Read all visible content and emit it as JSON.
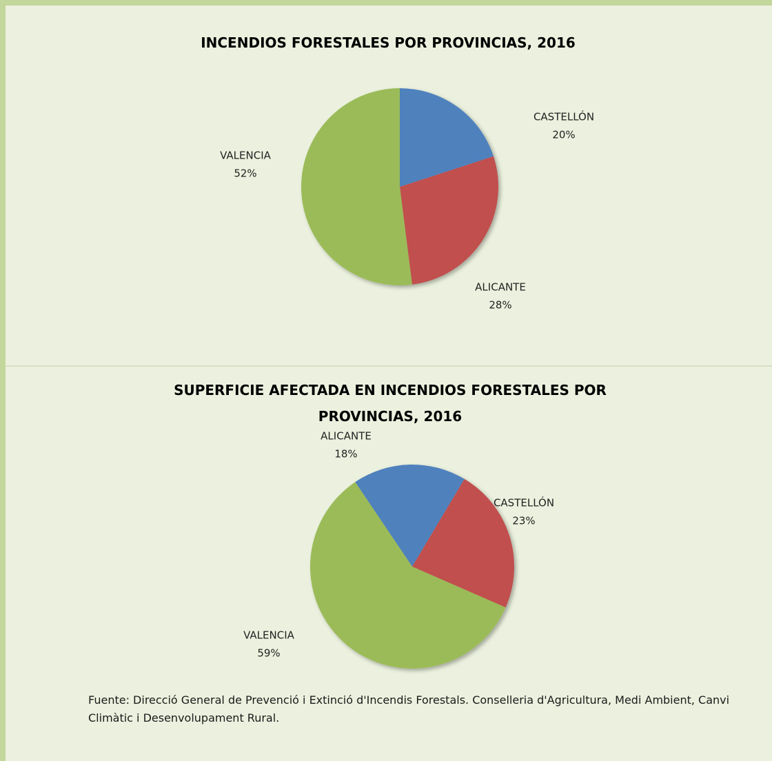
{
  "chart_data": [
    {
      "type": "pie",
      "title": "INCENDIOS FORESTALES POR PROVINCIAS, 2016",
      "categories": [
        "CASTELLÓN",
        "ALICANTE",
        "VALENCIA"
      ],
      "values": [
        20,
        28,
        52
      ],
      "value_labels": [
        "20%",
        "28%",
        "52%"
      ],
      "colors": [
        "#4f81bd",
        "#c0504d",
        "#9bbb59"
      ]
    },
    {
      "type": "pie",
      "title": "SUPERFICIE AFECTADA EN INCENDIOS FORESTALES POR PROVINCIAS, 2016",
      "categories": [
        "ALICANTE",
        "CASTELLÓN",
        "VALENCIA"
      ],
      "values": [
        18,
        23,
        59
      ],
      "value_labels": [
        "18%",
        "23%",
        "59%"
      ],
      "colors": [
        "#4f81bd",
        "#c0504d",
        "#9bbb59"
      ]
    }
  ],
  "source": "Fuente: Direcció General de Prevenció i Extinció d'Incendis Forestals. Conselleria d'Agricultura, Medi Ambient, Canvi Climàtic i Desenvolupament Rural."
}
